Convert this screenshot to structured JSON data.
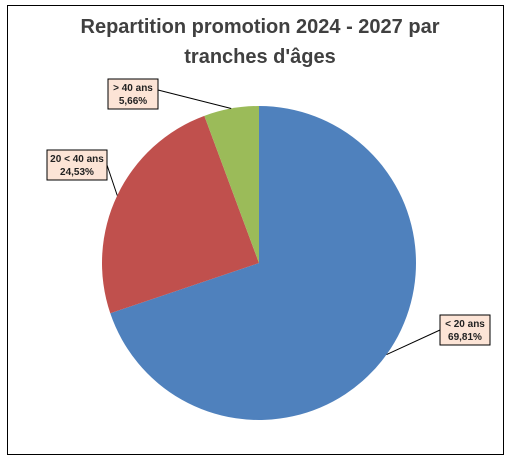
{
  "chart_data": {
    "type": "pie",
    "title": "Repartition promotion 2024 - 2027 par tranches d'âges",
    "categories": [
      "< 20 ans",
      "20 < 40 ans",
      "> 40 ans"
    ],
    "values": [
      69.81,
      24.53,
      5.66
    ],
    "value_labels": [
      "69,81%",
      "24,53%",
      "5,66%"
    ],
    "colors": [
      "#4f81bd",
      "#c0504d",
      "#9bbb59"
    ]
  }
}
